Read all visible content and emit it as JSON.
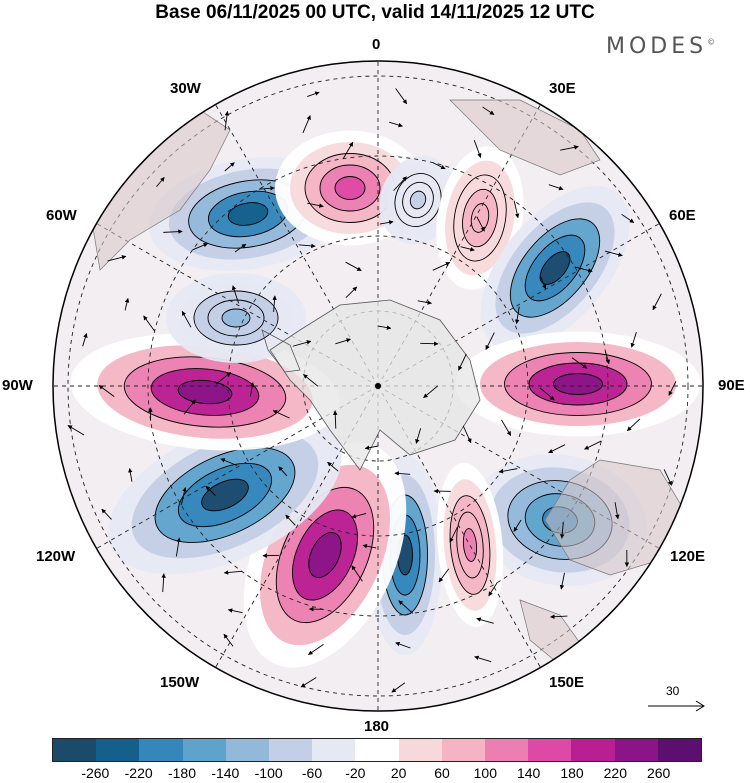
{
  "title": "Base 06/11/2025 00 UTC, valid 14/11/2025 12 UTC",
  "brand": "MODES",
  "brand_mark": "©",
  "longitude_labels": {
    "lon_0": "0",
    "lon_30e": "30E",
    "lon_60e": "60E",
    "lon_90e": "90E",
    "lon_120e": "120E",
    "lon_150e": "150E",
    "lon_180": "180",
    "lon_150w": "150W",
    "lon_120w": "120W",
    "lon_90w": "90W",
    "lon_60w": "60W",
    "lon_30w": "30W"
  },
  "reference_vector": {
    "label": "30",
    "icon": "arrow-right-icon"
  },
  "colorbar": {
    "ticks": [
      "-260",
      "-220",
      "-180",
      "-140",
      "-100",
      "-60",
      "-20",
      "20",
      "60",
      "100",
      "140",
      "180",
      "220",
      "260"
    ],
    "colors": [
      "#1b4a6b",
      "#155f8c",
      "#3586bb",
      "#5fa3cc",
      "#92b8da",
      "#c3cfe6",
      "#e6e8f3",
      "#ffffff",
      "#f8d9db",
      "#f4b4c4",
      "#eb7fb2",
      "#de48a6",
      "#b91f93",
      "#8b1586",
      "#5b1070"
    ]
  },
  "anomalies": [
    {
      "id": "neg-30w",
      "sign": "negative",
      "strength": -240
    },
    {
      "id": "pos-0",
      "sign": "positive",
      "strength": 160
    },
    {
      "id": "neg-15e",
      "sign": "negative",
      "strength": -60
    },
    {
      "id": "pos-25e",
      "sign": "positive",
      "strength": 100
    },
    {
      "id": "neg-60e",
      "sign": "negative",
      "strength": -260
    },
    {
      "id": "pos-90e",
      "sign": "positive",
      "strength": 240
    },
    {
      "id": "neg-125e",
      "sign": "negative",
      "strength": -200
    },
    {
      "id": "neg-170e",
      "sign": "negative",
      "strength": -260
    },
    {
      "id": "pos-155w",
      "sign": "positive",
      "strength": 260
    },
    {
      "id": "neg-120w",
      "sign": "negative",
      "strength": -260
    },
    {
      "id": "pos-90w",
      "sign": "positive",
      "strength": 260
    },
    {
      "id": "neg-70w",
      "sign": "negative",
      "strength": -100
    },
    {
      "id": "pos-150e",
      "sign": "positive",
      "strength": 120
    }
  ]
}
